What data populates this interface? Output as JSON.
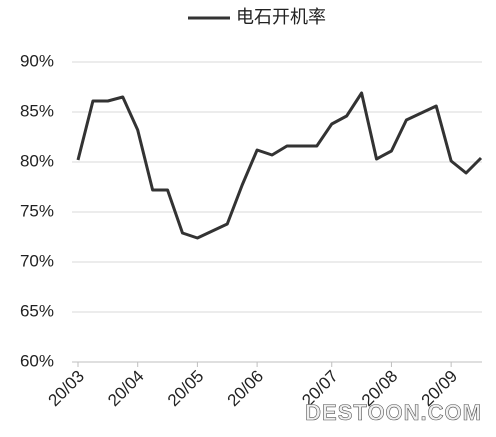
{
  "chart_data": {
    "type": "line",
    "categories": [
      "20/03",
      null,
      null,
      null,
      "20/04",
      null,
      null,
      null,
      "20/05",
      null,
      null,
      null,
      "20/06",
      null,
      null,
      null,
      null,
      "20/07",
      null,
      null,
      null,
      "20/08",
      null,
      null,
      null,
      "20/09",
      null,
      null
    ],
    "series": [
      {
        "name": "电石开机率",
        "color": "#333333",
        "values": [
          80.2,
          86.1,
          86.1,
          86.5,
          83.2,
          77.2,
          77.2,
          72.9,
          72.4,
          73.1,
          73.8,
          77.7,
          81.2,
          80.7,
          81.6,
          81.6,
          81.6,
          83.8,
          84.6,
          86.9,
          80.3,
          81.1,
          84.2,
          84.9,
          85.6,
          80.1,
          78.9,
          80.4
        ]
      }
    ],
    "ylim": [
      60,
      90
    ],
    "yticks": [
      {
        "value": 60,
        "label": "60%"
      },
      {
        "value": 65,
        "label": "65%"
      },
      {
        "value": 70,
        "label": "70%"
      },
      {
        "value": 75,
        "label": "75%"
      },
      {
        "value": 80,
        "label": "80%"
      },
      {
        "value": 85,
        "label": "85%"
      },
      {
        "value": 90,
        "label": "90%"
      }
    ],
    "grid": true,
    "legend": "top",
    "watermark": "DESTOON.COM"
  }
}
